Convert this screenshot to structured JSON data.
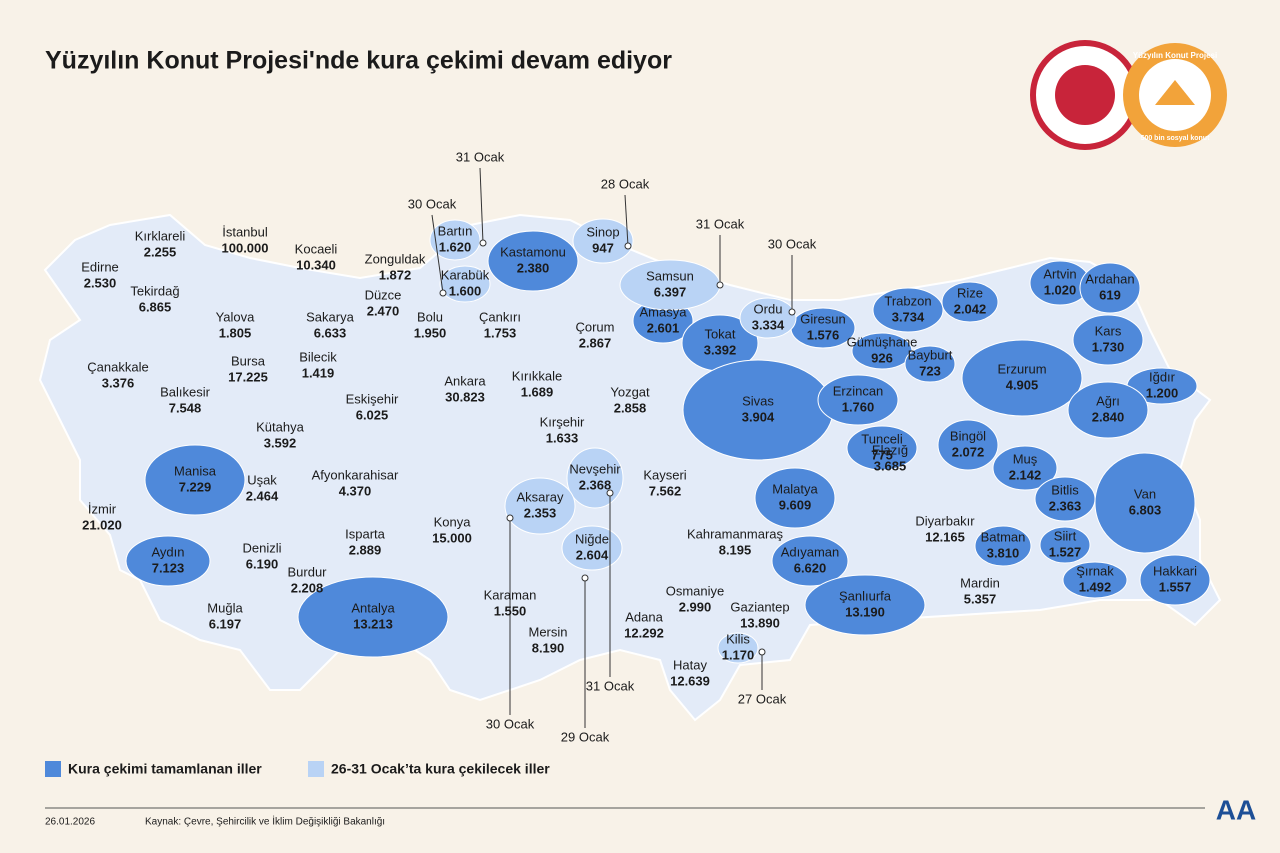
{
  "title": "Yüzyılın Konut Projesi'nde kura çekimi devam ediyor",
  "logo": {
    "ring_text": "Yüzyılın Konut Projesi",
    "bottom_text": "500 bin sosyal konut"
  },
  "legend": [
    {
      "label": "Kura çekimi tamamlanan iller",
      "color": "#4f89da"
    },
    {
      "label": "26-31 Ocak’ta kura çekilecek iller",
      "color": "#b9d3f5"
    }
  ],
  "map": {
    "completed": [
      {
        "name": "Kastamonu",
        "value": "2.380"
      },
      {
        "name": "Amasya",
        "value": "2.601"
      },
      {
        "name": "Tokat",
        "value": "3.392"
      },
      {
        "name": "Trabzon",
        "value": "3.734"
      },
      {
        "name": "Rize",
        "value": "2.042"
      },
      {
        "name": "Artvin",
        "value": "1.020"
      },
      {
        "name": "Ardahan",
        "value": "619"
      },
      {
        "name": "Giresun",
        "value": "1.576"
      },
      {
        "name": "Gümüşhane",
        "value": "926"
      },
      {
        "name": "Bayburt",
        "value": "723"
      },
      {
        "name": "Kars",
        "value": "1.730"
      },
      {
        "name": "Erzurum",
        "value": "4.905"
      },
      {
        "name": "Iğdır",
        "value": "1.200"
      },
      {
        "name": "Sivas",
        "value": "3.904"
      },
      {
        "name": "Erzincan",
        "value": "1.760"
      },
      {
        "name": "Ağrı",
        "value": "2.840"
      },
      {
        "name": "Tunceli",
        "value": "775"
      },
      {
        "name": "Bingöl",
        "value": "2.072"
      },
      {
        "name": "Muş",
        "value": "2.142"
      },
      {
        "name": "Manisa",
        "value": "7.229"
      },
      {
        "name": "Malatya",
        "value": "9.609"
      },
      {
        "name": "Bitlis",
        "value": "2.363"
      },
      {
        "name": "Van",
        "value": "6.803"
      },
      {
        "name": "Batman",
        "value": "3.810"
      },
      {
        "name": "Siirt",
        "value": "1.527"
      },
      {
        "name": "Aydın",
        "value": "7.123"
      },
      {
        "name": "Adıyaman",
        "value": "6.620"
      },
      {
        "name": "Şanlıurfa",
        "value": "13.190"
      },
      {
        "name": "Antalya",
        "value": "13.213"
      },
      {
        "name": "Şırnak",
        "value": "1.492"
      },
      {
        "name": "Hakkari",
        "value": "1.557"
      }
    ],
    "upcoming": [
      {
        "name": "Bartın",
        "value": "1.620",
        "date": "31 Ocak"
      },
      {
        "name": "Karabük",
        "value": "1.600",
        "date": "30 Ocak"
      },
      {
        "name": "Sinop",
        "value": "947",
        "date": "28 Ocak"
      },
      {
        "name": "Samsun",
        "value": "6.397",
        "date": "31 Ocak"
      },
      {
        "name": "Ordu",
        "value": "3.334",
        "date": "30 Ocak"
      },
      {
        "name": "Nevşehir",
        "value": "2.368",
        "date": "31 Ocak"
      },
      {
        "name": "Aksaray",
        "value": "2.353",
        "date": "30 Ocak"
      },
      {
        "name": "Niğde",
        "value": "2.604",
        "date": "29 Ocak"
      },
      {
        "name": "Kilis",
        "value": "1.170",
        "date": "27 Ocak"
      }
    ],
    "other": [
      {
        "name": "Kırklareli",
        "value": "2.255"
      },
      {
        "name": "Edirne",
        "value": "2.530"
      },
      {
        "name": "İstanbul",
        "value": "100.000"
      },
      {
        "name": "Tekirdağ",
        "value": "6.865"
      },
      {
        "name": "Kocaeli",
        "value": "10.340"
      },
      {
        "name": "Zonguldak",
        "value": "1.872"
      },
      {
        "name": "Yalova",
        "value": "1.805"
      },
      {
        "name": "Sakarya",
        "value": "6.633"
      },
      {
        "name": "Düzce",
        "value": "2.470"
      },
      {
        "name": "Bolu",
        "value": "1.950"
      },
      {
        "name": "Çankırı",
        "value": "1.753"
      },
      {
        "name": "Çorum",
        "value": "2.867"
      },
      {
        "name": "Çanakkale",
        "value": "3.376"
      },
      {
        "name": "Bursa",
        "value": "17.225"
      },
      {
        "name": "Bilecik",
        "value": "1.419"
      },
      {
        "name": "Balıkesir",
        "value": "7.548"
      },
      {
        "name": "Eskişehir",
        "value": "6.025"
      },
      {
        "name": "Ankara",
        "value": "30.823"
      },
      {
        "name": "Kırıkkale",
        "value": "1.689"
      },
      {
        "name": "Yozgat",
        "value": "2.858"
      },
      {
        "name": "Kütahya",
        "value": "3.592"
      },
      {
        "name": "Kırşehir",
        "value": "1.633"
      },
      {
        "name": "Uşak",
        "value": "2.464"
      },
      {
        "name": "Afyonkarahisar",
        "value": "4.370"
      },
      {
        "name": "Kayseri",
        "value": "7.562"
      },
      {
        "name": "İzmir",
        "value": "21.020"
      },
      {
        "name": "Denizli",
        "value": "6.190"
      },
      {
        "name": "Isparta",
        "value": "2.889"
      },
      {
        "name": "Konya",
        "value": "15.000"
      },
      {
        "name": "Kahramanmaraş",
        "value": "8.195"
      },
      {
        "name": "Burdur",
        "value": "2.208"
      },
      {
        "name": "Karaman",
        "value": "1.550"
      },
      {
        "name": "Osmaniye",
        "value": "2.990"
      },
      {
        "name": "Gaziantep",
        "value": "13.890"
      },
      {
        "name": "Muğla",
        "value": "6.197"
      },
      {
        "name": "Adana",
        "value": "12.292"
      },
      {
        "name": "Mersin",
        "value": "8.190"
      },
      {
        "name": "Hatay",
        "value": "12.639"
      },
      {
        "name": "Elazığ",
        "value": "3.685"
      },
      {
        "name": "Diyarbakır",
        "value": "12.165"
      },
      {
        "name": "Mardin",
        "value": "5.357"
      }
    ]
  },
  "footer": {
    "date": "26.01.2026",
    "source": "Kaynak: Çevre, Şehircilik ve İklim Değişikliği Bakanlığı",
    "agency": "AA"
  }
}
